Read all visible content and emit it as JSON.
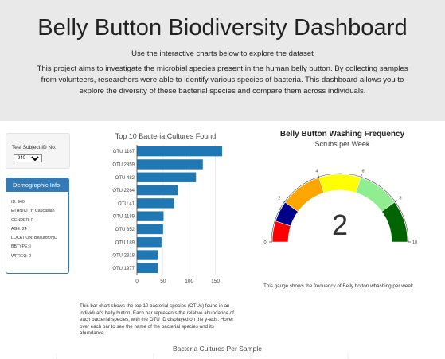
{
  "header": {
    "title": "Belly Button Biodiversity Dashboard",
    "lead": "Use the interactive charts below to explore the dataset",
    "description": "This project aims to investigate the microbial species present in the human belly button. By collecting samples from volunteers, researchers were able to identify various species of bacteria. This dashboard allows you to explore the diversity of these bacterial species and compare them across individuals."
  },
  "selector": {
    "label": "Test Subject ID No.:",
    "selected": "940"
  },
  "demographics": {
    "title": "Demographic Info",
    "items": [
      "ID: 940",
      "ETHNICITY: Caucasian",
      "GENDER: F",
      "AGE: 24",
      "LOCATION: Beaufort/NC",
      "BBTYPE: I",
      "WFREQ: 2"
    ]
  },
  "bar_caption": "This bar chart shows the top 10 bacterial species (OTUs) found in an individual's belly button. Each bar represents the relative abundance of each bacterial species, with the OTU ID displayed on the y-axis. Hover over each bar to see the name of the bacterial species and its abundance.",
  "gauge": {
    "title": "Belly Button Washing Frequency",
    "subtitle": "Scrubs per Week",
    "value": 2,
    "caption": "This gauge shows the frequency of Belly botton whashing per week.",
    "bands": [
      {
        "from": 0,
        "to": 1,
        "color": "#ff0000"
      },
      {
        "from": 1,
        "to": 2,
        "color": "#00008b"
      },
      {
        "from": 2,
        "to": 4,
        "color": "#ffa500"
      },
      {
        "from": 4,
        "to": 6,
        "color": "#ffff00"
      },
      {
        "from": 6,
        "to": 8,
        "color": "#90ee90"
      },
      {
        "from": 8,
        "to": 10,
        "color": "#006400"
      }
    ],
    "ticks": [
      "0",
      "2",
      "4",
      "6",
      "8",
      "10"
    ]
  },
  "bubble_title": "Bacteria Cultures Per Sample",
  "chart_data": {
    "type": "bar",
    "orientation": "horizontal",
    "title": "Top 10 Bacteria Cultures Found",
    "categories": [
      "OTU 1167",
      "OTU 2859",
      "OTU 482",
      "OTU 2264",
      "OTU 41",
      "OTU 1189",
      "OTU 352",
      "OTU 189",
      "OTU 2318",
      "OTU 1977"
    ],
    "values": [
      163,
      126,
      113,
      78,
      71,
      51,
      50,
      47,
      40,
      40
    ],
    "xticks": [
      "0",
      "50",
      "100",
      "150"
    ],
    "xlim": [
      0,
      172
    ],
    "color": "#1f77b4"
  }
}
